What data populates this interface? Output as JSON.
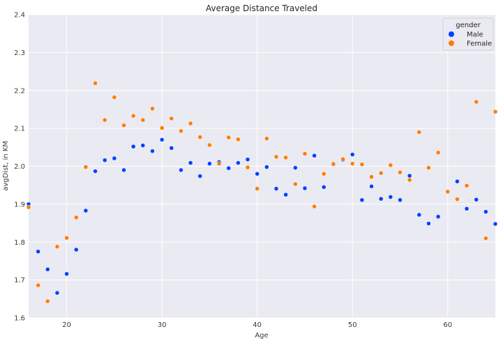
{
  "chart_data": {
    "type": "scatter",
    "title": "Average Distance Traveled",
    "xlabel": "Age",
    "ylabel": "avgDist, in KM",
    "xlim": [
      16,
      65
    ],
    "ylim": [
      1.6,
      2.4
    ],
    "xticks": [
      20,
      30,
      40,
      50,
      60
    ],
    "yticks": [
      1.6,
      1.7,
      1.8,
      1.9,
      2.0,
      2.1,
      2.2,
      2.3,
      2.4
    ],
    "grid": true,
    "legend": {
      "title": "gender",
      "placement": "top-right"
    },
    "series": [
      {
        "name": "Male",
        "color": "#0340ff",
        "points": [
          [
            16,
            1.9
          ],
          [
            17,
            1.775
          ],
          [
            18,
            1.728
          ],
          [
            19,
            1.666
          ],
          [
            20,
            1.716
          ],
          [
            21,
            1.78
          ],
          [
            22,
            1.883
          ],
          [
            23,
            1.987
          ],
          [
            24,
            2.016
          ],
          [
            25,
            2.021
          ],
          [
            26,
            1.99
          ],
          [
            27,
            2.052
          ],
          [
            28,
            2.055
          ],
          [
            29,
            2.04
          ],
          [
            30,
            2.07
          ],
          [
            31,
            2.048
          ],
          [
            32,
            1.99
          ],
          [
            33,
            2.009
          ],
          [
            34,
            1.974
          ],
          [
            35,
            2.007
          ],
          [
            36,
            2.011
          ],
          [
            37,
            1.995
          ],
          [
            38,
            2.009
          ],
          [
            39,
            2.018
          ],
          [
            40,
            1.98
          ],
          [
            41,
            1.998
          ],
          [
            42,
            1.941
          ],
          [
            43,
            1.925
          ],
          [
            44,
            1.996
          ],
          [
            45,
            1.942
          ],
          [
            46,
            2.028
          ],
          [
            47,
            1.945
          ],
          [
            48,
            2.005
          ],
          [
            49,
            2.017
          ],
          [
            50,
            2.031
          ],
          [
            51,
            1.911
          ],
          [
            52,
            1.947
          ],
          [
            53,
            1.914
          ],
          [
            54,
            1.919
          ],
          [
            55,
            1.911
          ],
          [
            56,
            1.975
          ],
          [
            57,
            1.872
          ],
          [
            58,
            1.849
          ],
          [
            59,
            1.867
          ],
          [
            60,
            1.933
          ],
          [
            61,
            1.96
          ],
          [
            62,
            1.888
          ],
          [
            63,
            1.912
          ],
          [
            64,
            1.88
          ],
          [
            65,
            1.848
          ]
        ]
      },
      {
        "name": "Female",
        "color": "#ff7c00",
        "points": [
          [
            16,
            1.892
          ],
          [
            17,
            1.686
          ],
          [
            18,
            1.644
          ],
          [
            19,
            1.788
          ],
          [
            20,
            1.811
          ],
          [
            21,
            1.865
          ],
          [
            22,
            1.998
          ],
          [
            23,
            2.219
          ],
          [
            24,
            2.122
          ],
          [
            25,
            2.182
          ],
          [
            26,
            2.108
          ],
          [
            27,
            2.133
          ],
          [
            28,
            2.122
          ],
          [
            29,
            2.152
          ],
          [
            30,
            2.101
          ],
          [
            31,
            2.126
          ],
          [
            32,
            2.093
          ],
          [
            33,
            2.113
          ],
          [
            34,
            2.077
          ],
          [
            35,
            2.056
          ],
          [
            36,
            2.007
          ],
          [
            37,
            2.076
          ],
          [
            38,
            2.071
          ],
          [
            39,
            1.997
          ],
          [
            40,
            1.941
          ],
          [
            41,
            2.073
          ],
          [
            42,
            2.025
          ],
          [
            43,
            2.023
          ],
          [
            44,
            1.953
          ],
          [
            45,
            2.033
          ],
          [
            46,
            1.894
          ],
          [
            47,
            1.98
          ],
          [
            48,
            2.006
          ],
          [
            49,
            2.019
          ],
          [
            50,
            2.007
          ],
          [
            51,
            2.005
          ],
          [
            52,
            1.972
          ],
          [
            53,
            1.982
          ],
          [
            54,
            2.003
          ],
          [
            55,
            1.984
          ],
          [
            56,
            1.964
          ],
          [
            57,
            2.09
          ],
          [
            58,
            1.996
          ],
          [
            59,
            2.036
          ],
          [
            60,
            1.933
          ],
          [
            61,
            1.913
          ],
          [
            62,
            1.949
          ],
          [
            63,
            2.17
          ],
          [
            64,
            1.81
          ],
          [
            65,
            2.144
          ]
        ]
      }
    ]
  }
}
